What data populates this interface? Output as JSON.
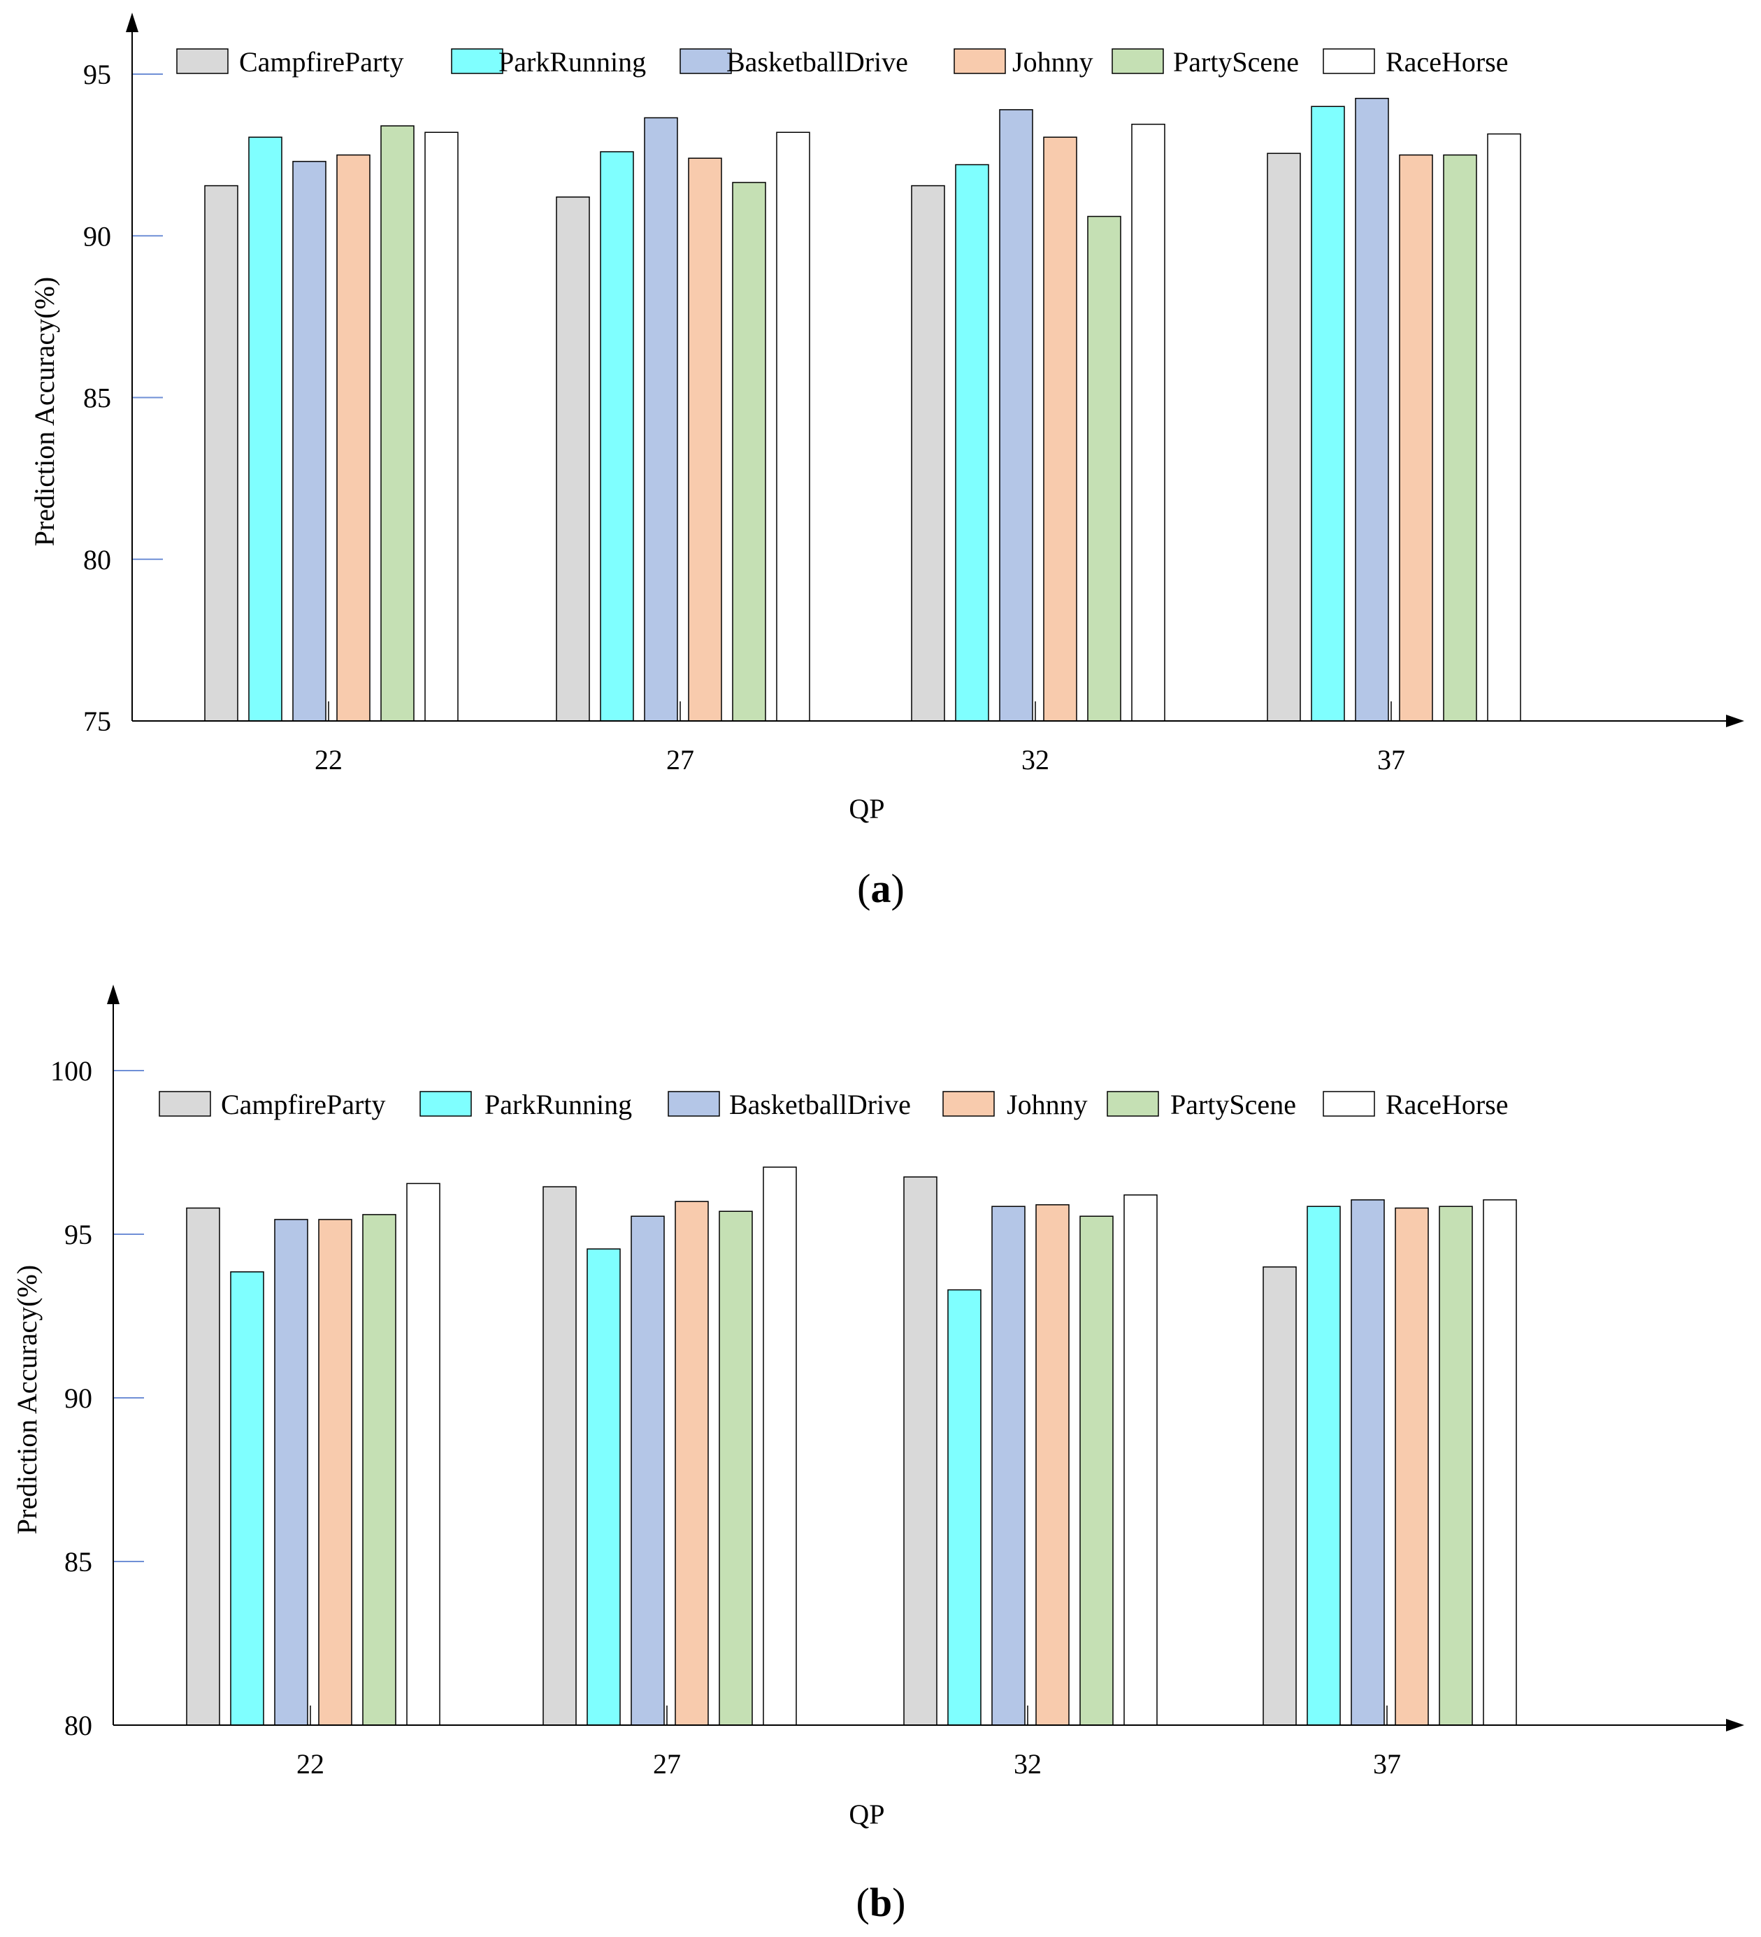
{
  "chart_data": [
    {
      "type": "bar",
      "caption_letter": "a",
      "categories": [
        "22",
        "27",
        "32",
        "37"
      ],
      "xlabel": "QP",
      "ylabel": "Prediction Accuracy(%)",
      "ylim": [
        75,
        96
      ],
      "yticks": [
        75,
        80,
        85,
        90,
        95
      ],
      "series": [
        {
          "name": "CampfireParty",
          "color": "#d9d9d9",
          "values": [
            91.55,
            91.2,
            91.55,
            92.55
          ]
        },
        {
          "name": "ParkRunning",
          "color": "#7fffff",
          "values": [
            93.05,
            92.6,
            92.2,
            94.0
          ]
        },
        {
          "name": "BasketballDrive",
          "color": "#b4c6e7",
          "values": [
            92.3,
            93.65,
            93.9,
            94.25
          ]
        },
        {
          "name": "Johnny",
          "color": "#f8cbad",
          "values": [
            92.5,
            92.4,
            93.05,
            92.5
          ]
        },
        {
          "name": "PartyScene",
          "color": "#c5e0b4",
          "values": [
            93.4,
            91.65,
            90.6,
            92.5
          ]
        },
        {
          "name": "RaceHorse",
          "color": "#ffffff",
          "values": [
            93.2,
            93.2,
            93.45,
            93.15
          ]
        }
      ]
    },
    {
      "type": "bar",
      "caption_letter": "b",
      "categories": [
        "22",
        "27",
        "32",
        "37"
      ],
      "xlabel": "QP",
      "ylabel": "Prediction Accuracy(%)",
      "ylim": [
        80,
        101
      ],
      "yticks": [
        80,
        85,
        90,
        95,
        100
      ],
      "series": [
        {
          "name": "CampfireParty",
          "color": "#d9d9d9",
          "values": [
            95.8,
            96.45,
            96.75,
            94.0
          ]
        },
        {
          "name": "ParkRunning",
          "color": "#7fffff",
          "values": [
            93.85,
            94.55,
            93.3,
            95.85
          ]
        },
        {
          "name": "BasketballDrive",
          "color": "#b4c6e7",
          "values": [
            95.45,
            95.55,
            95.85,
            96.05
          ]
        },
        {
          "name": "Johnny",
          "color": "#f8cbad",
          "values": [
            95.45,
            96.0,
            95.9,
            95.8
          ]
        },
        {
          "name": "PartyScene",
          "color": "#c5e0b4",
          "values": [
            95.6,
            95.7,
            95.55,
            95.85
          ]
        },
        {
          "name": "RaceHorse",
          "color": "#ffffff",
          "values": [
            96.55,
            97.05,
            96.2,
            96.05
          ]
        }
      ]
    }
  ]
}
